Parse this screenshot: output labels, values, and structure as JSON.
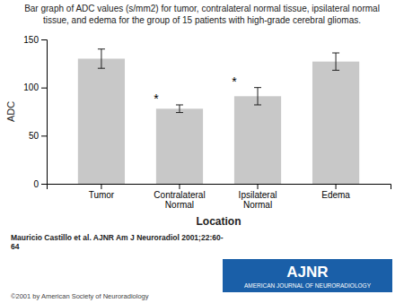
{
  "chart_data": {
    "type": "bar",
    "title": [
      "Bar graph of ADC values (s/mm2) for tumor, contralateral normal tissue, ipsilateral normal",
      "tissue, and edema for the group of 15 patients with high-grade cerebral gliomas."
    ],
    "categories": [
      "Tumor",
      "Contralateral\nNormal",
      "Ipsilateral\nNormal",
      "Edema"
    ],
    "values": [
      130,
      78,
      91,
      127
    ],
    "errors": [
      10,
      4,
      9,
      9
    ],
    "annotations": [
      null,
      "*",
      "*",
      null
    ],
    "color": "#c8c8c8",
    "ylabel": "ADC",
    "xlabel": "Location",
    "ylim": [
      0,
      150
    ],
    "yticks": [
      0,
      50,
      100,
      150
    ],
    "grid": false,
    "footnote": "Mauricio Castillo et al. AJNR Am J Neuroradiol 2001;22:60-\n64",
    "copyright": "©2001 by American Society of Neuroradiology",
    "logo": {
      "text": "AJNR",
      "subtitle": "AMERICAN JOURNAL OF NEURORADIOLOGY",
      "color": "#1a5fa8"
    }
  }
}
